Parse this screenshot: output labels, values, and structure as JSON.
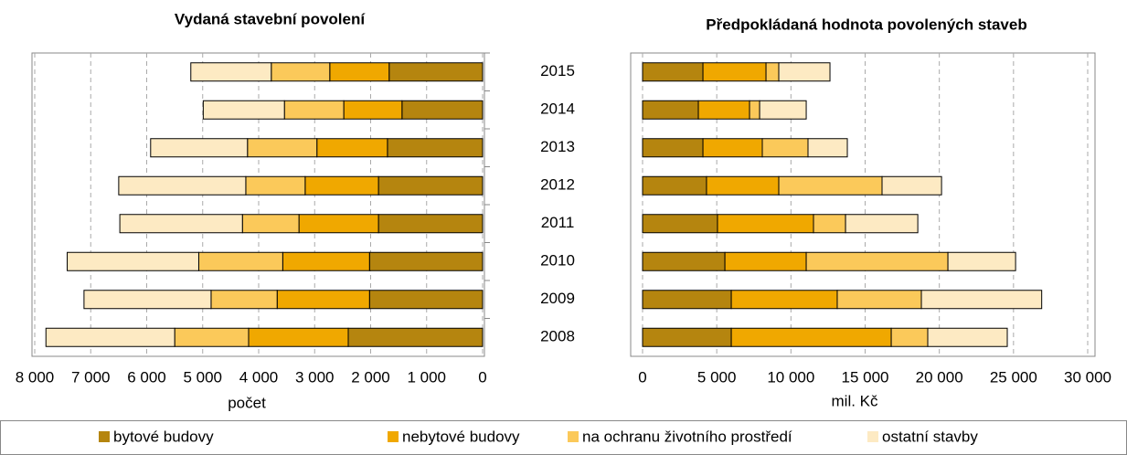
{
  "chart_data": [
    {
      "type": "bar",
      "orientation": "horizontal",
      "stacked": true,
      "reversed": true,
      "title": "Vydaná stavební povolení",
      "x_label": "počet",
      "categories": [
        "2015",
        "2014",
        "2013",
        "2012",
        "2011",
        "2010",
        "2009",
        "2008"
      ],
      "xlim": [
        0,
        8000
      ],
      "xticks": [
        {
          "value": 8000,
          "label": "8 000"
        },
        {
          "value": 7000,
          "label": "7 000"
        },
        {
          "value": 6000,
          "label": "6 000"
        },
        {
          "value": 5000,
          "label": "5 000"
        },
        {
          "value": 4000,
          "label": "4 000"
        },
        {
          "value": 3000,
          "label": "3 000"
        },
        {
          "value": 2000,
          "label": "2 000"
        },
        {
          "value": 1000,
          "label": "1 000"
        },
        0
      ],
      "grid": true,
      "series": [
        {
          "name": "bytové budovy",
          "color": "#b5850f",
          "values": [
            1670,
            1440,
            1700,
            1860,
            1860,
            2020,
            2020,
            2400
          ]
        },
        {
          "name": "nebytové budovy",
          "color": "#f0a800",
          "values": [
            1060,
            1040,
            1260,
            1310,
            1420,
            1550,
            1650,
            1780
          ]
        },
        {
          "name": "na ochranu životního prostředí",
          "color": "#fbc95a",
          "values": [
            1045,
            1060,
            1240,
            1060,
            1010,
            1500,
            1180,
            1320
          ]
        },
        {
          "name": "ostatní stavby",
          "color": "#fdeac3",
          "values": [
            1437,
            1450,
            1730,
            2270,
            2190,
            2350,
            2270,
            2300
          ]
        }
      ]
    },
    {
      "type": "bar",
      "orientation": "horizontal",
      "stacked": true,
      "title": "Předpokládaná hodnota povolených staveb",
      "x_label": "mil. Kč",
      "xlim": [
        0,
        30000
      ],
      "xticks": [
        0,
        {
          "value": 5000,
          "label": "5 000"
        },
        {
          "value": 10000,
          "label": "10 000"
        },
        {
          "value": 15000,
          "label": "15 000"
        },
        {
          "value": 20000,
          "label": "20 000"
        },
        {
          "value": 25000,
          "label": "25 000"
        },
        {
          "value": 30000,
          "label": "30 000"
        }
      ],
      "grid": true,
      "series": [
        {
          "color": "#b5850f",
          "values": [
            4070,
            3760,
            4070,
            4310,
            5050,
            5550,
            5980,
            5980
          ]
        },
        {
          "color": "#f0a800",
          "values": [
            4250,
            3450,
            4000,
            4870,
            6470,
            5480,
            7140,
            10780
          ]
        },
        {
          "color": "#fbc95a",
          "values": [
            860,
            680,
            3080,
            6960,
            2160,
            9550,
            5670,
            2460
          ]
        },
        {
          "color": "#fdeac3",
          "values": [
            3450,
            3140,
            2650,
            4010,
            4870,
            4560,
            8110,
            5360
          ]
        }
      ]
    }
  ]
}
